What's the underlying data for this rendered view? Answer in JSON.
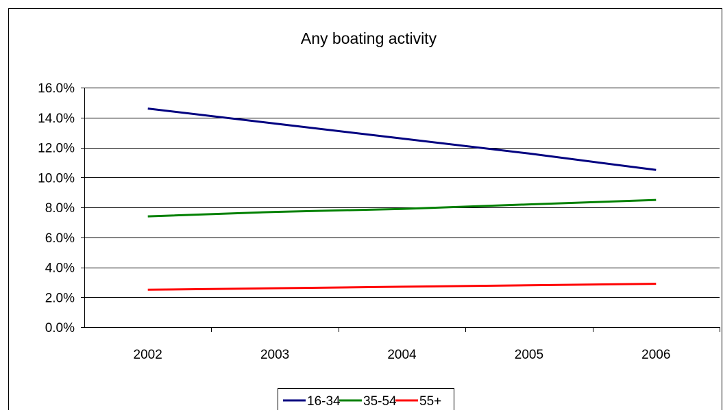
{
  "chart_data": {
    "type": "line",
    "title": "Any boating activity",
    "xlabel": "",
    "ylabel": "",
    "categories": [
      "2002",
      "2003",
      "2004",
      "2005",
      "2006"
    ],
    "ylim": [
      0,
      16
    ],
    "yticks": [
      "0.0%",
      "2.0%",
      "4.0%",
      "6.0%",
      "8.0%",
      "10.0%",
      "12.0%",
      "14.0%",
      "16.0%"
    ],
    "grid": "horizontal",
    "legend_position": "bottom",
    "series": [
      {
        "name": "16-34",
        "color": "#000080",
        "values": [
          14.6,
          13.6,
          12.6,
          11.6,
          10.5
        ]
      },
      {
        "name": "35-54",
        "color": "#008000",
        "values": [
          7.4,
          7.7,
          7.9,
          8.2,
          8.5
        ]
      },
      {
        "name": "55+",
        "color": "#ff0000",
        "values": [
          2.5,
          2.6,
          2.7,
          2.8,
          2.9
        ]
      }
    ]
  }
}
